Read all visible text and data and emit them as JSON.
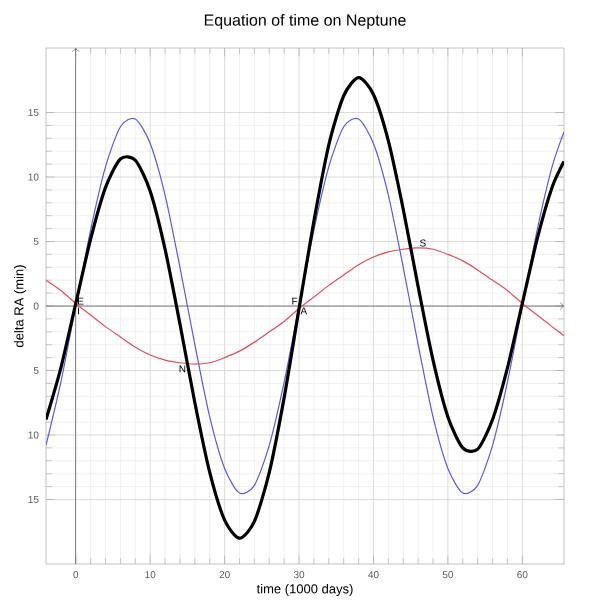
{
  "chart_data": {
    "type": "line",
    "title": "Equation of time on Neptune",
    "xlabel": "time (1000 days)",
    "ylabel": "delta RA (min)",
    "x": [
      -4,
      -2,
      0,
      2,
      4,
      6,
      8,
      10,
      12,
      14,
      16,
      18,
      20,
      22,
      24,
      26,
      28,
      30,
      32,
      34,
      36,
      38,
      40,
      42,
      44,
      46,
      48,
      50,
      52,
      54,
      56,
      58,
      60,
      62,
      64,
      65.6
    ],
    "series": [
      {
        "color": "#5a5ae0",
        "values": [
          -10.8,
          -5.9,
          0,
          5.9,
          10.8,
          13.9,
          14.5,
          12.6,
          8.6,
          3,
          -3,
          -8.6,
          -12.6,
          -14.5,
          -13.9,
          -10.8,
          -5.9,
          0,
          5.9,
          10.8,
          13.9,
          14.5,
          12.6,
          8.6,
          3,
          -3,
          -8.6,
          -12.6,
          -14.5,
          -13.9,
          -10.8,
          -5.9,
          0,
          5.9,
          10.8,
          13.5
        ]
      },
      {
        "color": "#e0505a",
        "values": [
          2,
          1.2,
          0.2,
          -0.7,
          -1.6,
          -2.4,
          -3.2,
          -3.8,
          -4.2,
          -4.4,
          -4.5,
          -4.4,
          -4,
          -3.5,
          -2.8,
          -2,
          -1.2,
          -0.2,
          0.7,
          1.6,
          2.4,
          3.2,
          3.8,
          4.2,
          4.4,
          4.5,
          4.4,
          4,
          3.5,
          2.8,
          2,
          1.2,
          0.2,
          -0.7,
          -1.6,
          -2.3
        ]
      },
      {
        "color": "#000000",
        "values": [
          -8.8,
          -4.8,
          0.2,
          5.2,
          9.2,
          11.4,
          11.3,
          8.9,
          4.4,
          -1.4,
          -7.5,
          -12.9,
          -16.6,
          -18,
          -16.7,
          -12.9,
          -7.1,
          -0.2,
          6.6,
          12.5,
          16.3,
          17.7,
          16.4,
          12.8,
          7.5,
          1.5,
          -4.2,
          -8.6,
          -11,
          -11.1,
          -8.8,
          -4.8,
          0.2,
          5.2,
          9.2,
          11.2
        ]
      }
    ],
    "annotations": [
      {
        "text": "E",
        "x": 0,
        "y": 0
      },
      {
        "text": "I",
        "x": 0,
        "y": 0
      },
      {
        "text": "F",
        "x": 30,
        "y": 0
      },
      {
        "text": "A",
        "x": 30,
        "y": 0
      },
      {
        "text": "N",
        "x": 15,
        "y": -4.5
      },
      {
        "text": "S",
        "x": 46,
        "y": 4.5
      }
    ],
    "xlim": [
      -4,
      65.6
    ],
    "ylim": [
      -20,
      20
    ],
    "xticks": [
      0,
      10,
      20,
      30,
      40,
      50,
      60
    ],
    "yticks": [
      {
        "value": -15,
        "label": "15"
      },
      {
        "value": -10,
        "label": "10"
      },
      {
        "value": -5,
        "label": "5"
      },
      0,
      5,
      10,
      15
    ],
    "grid": true,
    "marker": "none",
    "line_style": "solid"
  }
}
